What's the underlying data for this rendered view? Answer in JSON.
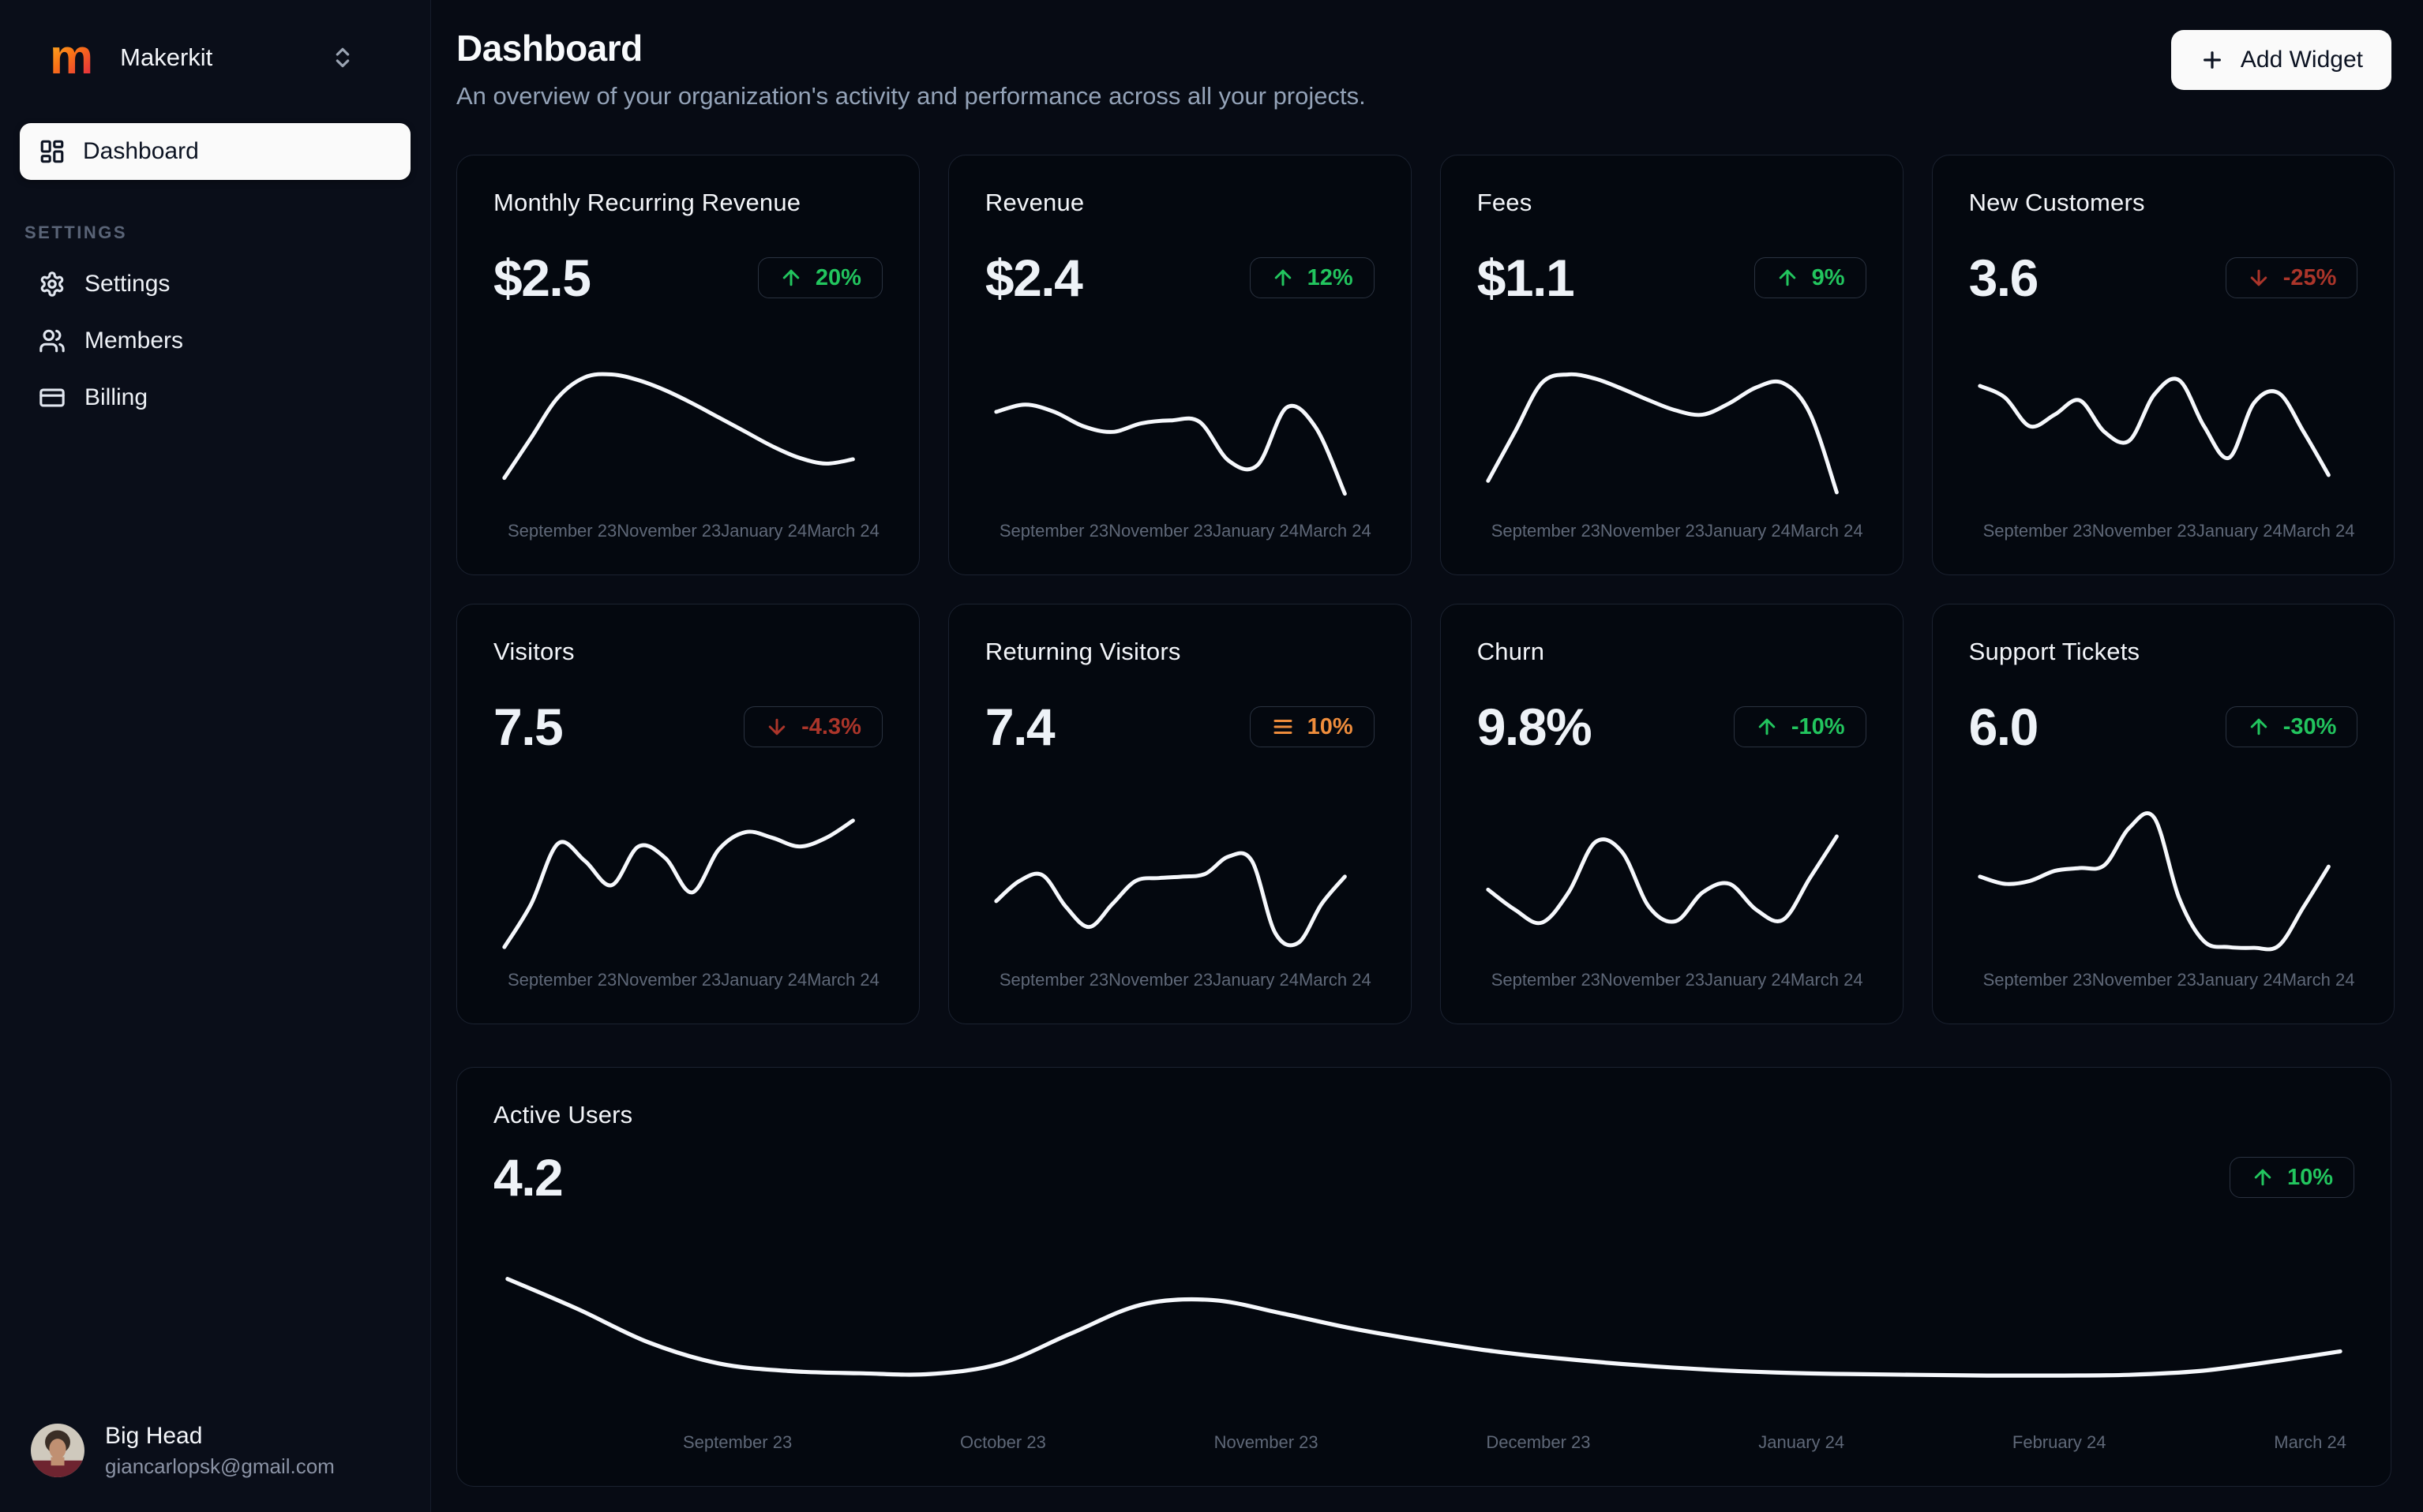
{
  "colors": {
    "positive": "#22c55e",
    "negative": "#ab352a",
    "neutral": "#ef8d3c"
  },
  "sidebar": {
    "workspace": {
      "logo_letter": "m",
      "name": "Makerkit"
    },
    "nav": [
      {
        "label": "Dashboard",
        "active": true
      }
    ],
    "section_label": "SETTINGS",
    "settings_nav": [
      {
        "label": "Settings"
      },
      {
        "label": "Members"
      },
      {
        "label": "Billing"
      }
    ],
    "user": {
      "name": "Big Head",
      "email": "giancarlopsk@gmail.com"
    }
  },
  "header": {
    "title": "Dashboard",
    "subtitle": "An overview of your organization's activity and performance across all your projects.",
    "add_widget_label": "Add Widget"
  },
  "metric_cards": [
    {
      "title": "Monthly Recurring Revenue",
      "value": "$2.5",
      "trend": "up",
      "change": "20%",
      "x_labels": [
        "September 23",
        "November 23",
        "January 24",
        "March 24"
      ]
    },
    {
      "title": "Revenue",
      "value": "$2.4",
      "trend": "up",
      "change": "12%",
      "x_labels": [
        "September 23",
        "November 23",
        "January 24",
        "March 24"
      ]
    },
    {
      "title": "Fees",
      "value": "$1.1",
      "trend": "up",
      "change": "9%",
      "x_labels": [
        "September 23",
        "November 23",
        "January 24",
        "March 24"
      ]
    },
    {
      "title": "New Customers",
      "value": "3.6",
      "trend": "down",
      "change": "-25%",
      "x_labels": [
        "September 23",
        "November 23",
        "January 24",
        "March 24"
      ]
    },
    {
      "title": "Visitors",
      "value": "7.5",
      "trend": "down",
      "change": "-4.3%",
      "x_labels": [
        "September 23",
        "November 23",
        "January 24",
        "March 24"
      ]
    },
    {
      "title": "Returning Visitors",
      "value": "7.4",
      "trend": "neutral",
      "change": "10%",
      "x_labels": [
        "September 23",
        "November 23",
        "January 24",
        "March 24"
      ]
    },
    {
      "title": "Churn",
      "value": "9.8%",
      "trend": "up",
      "change": "-10%",
      "x_labels": [
        "September 23",
        "November 23",
        "January 24",
        "March 24"
      ]
    },
    {
      "title": "Support Tickets",
      "value": "6.0",
      "trend": "up",
      "change": "-30%",
      "x_labels": [
        "September 23",
        "November 23",
        "January 24",
        "March 24"
      ]
    }
  ],
  "active_users": {
    "title": "Active Users",
    "value": "4.2",
    "trend": "up",
    "change": "10%",
    "x_labels": [
      "September 23",
      "October 23",
      "November 23",
      "December 23",
      "January 24",
      "February 24",
      "March 24"
    ]
  },
  "chart_data": [
    {
      "name": "Monthly Recurring Revenue",
      "type": "line",
      "x_range": [
        "September 23",
        "March 24"
      ],
      "y_scale": "relative 0-10 (unlabeled sparkline)",
      "values": [
        2.0,
        4.8,
        7.6,
        9.0,
        9.2,
        8.8,
        8.1,
        7.2,
        6.2,
        5.2,
        4.2,
        3.4,
        3.0,
        3.3
      ]
    },
    {
      "name": "Revenue",
      "type": "line",
      "x_range": [
        "September 23",
        "March 24"
      ],
      "y_scale": "relative 0-10 (unlabeled sparkline)",
      "values": [
        6.6,
        7.1,
        6.6,
        5.6,
        5.2,
        5.8,
        6.0,
        5.9,
        3.2,
        2.9,
        6.9,
        5.5,
        0.9
      ]
    },
    {
      "name": "Fees",
      "type": "line",
      "x_range": [
        "September 23",
        "March 24"
      ],
      "y_scale": "relative 0-10 (unlabeled sparkline)",
      "values": [
        1.8,
        5.2,
        8.6,
        9.2,
        8.9,
        8.2,
        7.4,
        6.7,
        6.4,
        7.2,
        8.3,
        8.6,
        6.5,
        1.0
      ]
    },
    {
      "name": "New Customers",
      "type": "line",
      "x_range": [
        "September 23",
        "March 24"
      ],
      "y_scale": "relative 0-10 (unlabeled sparkline)",
      "values": [
        8.4,
        7.6,
        5.6,
        6.4,
        7.4,
        5.2,
        4.6,
        7.8,
        8.8,
        5.6,
        3.4,
        7.2,
        7.9,
        5.2,
        2.2
      ]
    },
    {
      "name": "Visitors",
      "type": "line",
      "x_range": [
        "September 23",
        "March 24"
      ],
      "y_scale": "relative 0-10 (unlabeled sparkline)",
      "values": [
        0.6,
        3.6,
        7.8,
        6.6,
        4.9,
        7.6,
        6.8,
        4.4,
        7.4,
        8.6,
        8.2,
        7.6,
        8.2,
        9.4
      ]
    },
    {
      "name": "Returning Visitors",
      "type": "line",
      "x_range": [
        "September 23",
        "March 24"
      ],
      "y_scale": "relative 0-10 (unlabeled sparkline)",
      "values": [
        3.8,
        5.2,
        5.6,
        3.4,
        2.0,
        3.6,
        5.2,
        5.4,
        5.5,
        5.7,
        6.9,
        6.6,
        1.6,
        0.9,
        3.6,
        5.5
      ]
    },
    {
      "name": "Churn",
      "type": "line",
      "x_range": [
        "September 23",
        "March 24"
      ],
      "y_scale": "relative 0-10 (unlabeled sparkline)",
      "values": [
        4.6,
        3.2,
        2.3,
        4.4,
        7.9,
        7.2,
        3.4,
        2.4,
        4.4,
        5.0,
        3.2,
        2.5,
        5.4,
        8.3
      ]
    },
    {
      "name": "Support Tickets",
      "type": "line",
      "x_range": [
        "September 23",
        "March 24"
      ],
      "y_scale": "relative 0-10 (unlabeled sparkline)",
      "values": [
        5.5,
        5.0,
        5.2,
        5.9,
        6.1,
        6.3,
        8.9,
        9.6,
        4.0,
        1.0,
        0.6,
        0.55,
        0.7,
        3.4,
        6.2
      ]
    },
    {
      "name": "Active Users",
      "type": "line",
      "x_range": [
        "September 23",
        "March 24"
      ],
      "y_scale": "relative 0-10 (unlabeled sparkline)",
      "values": [
        9.2,
        7.2,
        5.0,
        3.6,
        3.1,
        2.95,
        2.9,
        3.6,
        5.6,
        7.5,
        7.8,
        6.9,
        5.9,
        5.1,
        4.4,
        3.9,
        3.5,
        3.2,
        3.0,
        2.9,
        2.85,
        2.8,
        2.8,
        2.85,
        3.1,
        3.7,
        4.4
      ]
    }
  ]
}
